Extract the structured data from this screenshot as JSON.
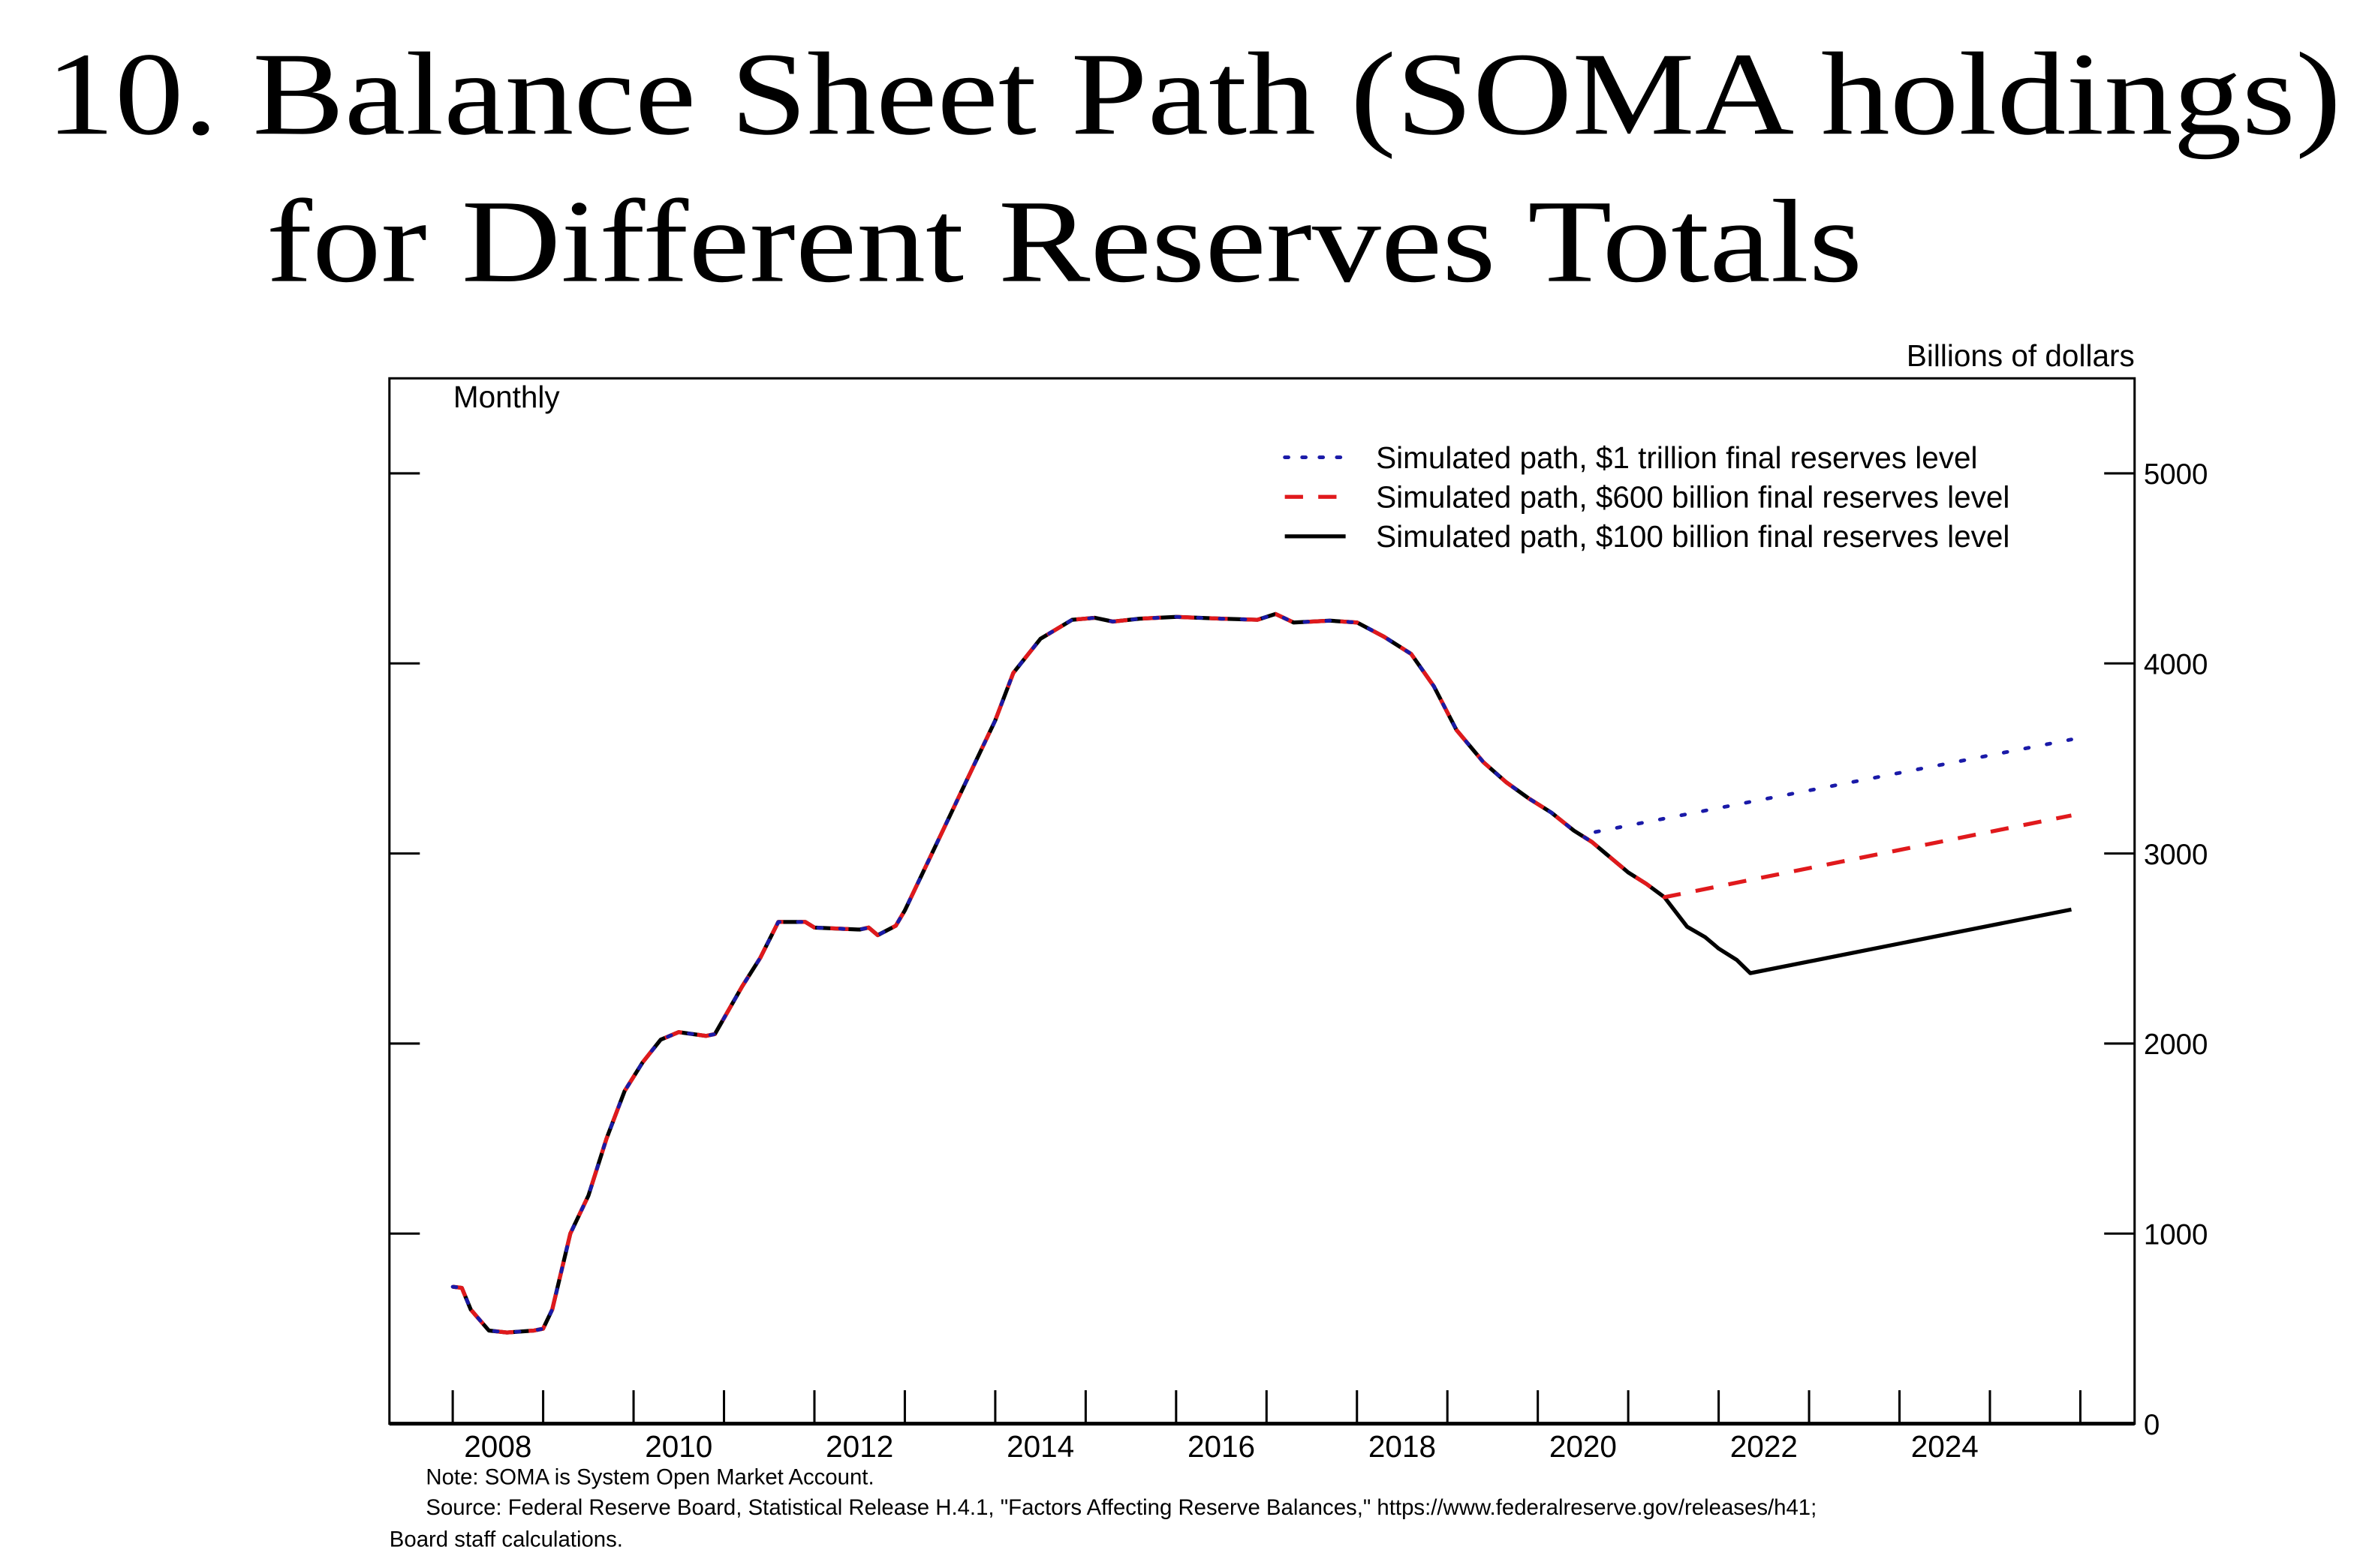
{
  "title_line1": "10. Balance Sheet Path (SOMA holdings)",
  "title_line2": "for Different Reserves Totals",
  "chart_data": {
    "type": "line",
    "frequency_label": "Monthly",
    "ylabel": "Billions of dollars",
    "xlim": [
      2007.3,
      2026.6
    ],
    "ylim": [
      0,
      5500
    ],
    "y_ticks": [
      0,
      1000,
      2000,
      3000,
      4000,
      5000
    ],
    "x_tick_years": [
      2008,
      2009,
      2010,
      2011,
      2012,
      2013,
      2014,
      2015,
      2016,
      2017,
      2018,
      2019,
      2020,
      2021,
      2022,
      2023,
      2024,
      2025,
      2026
    ],
    "x_tick_labels": [
      "2008",
      "2010",
      "2012",
      "2014",
      "2016",
      "2018",
      "2020",
      "2022",
      "2024"
    ],
    "y_axis_side": "right",
    "grid": false,
    "legend_placement": "top-right",
    "history": [
      [
        2008.0,
        720
      ],
      [
        2008.1,
        715
      ],
      [
        2008.2,
        600
      ],
      [
        2008.4,
        490
      ],
      [
        2008.6,
        480
      ],
      [
        2008.9,
        490
      ],
      [
        2009.0,
        500
      ],
      [
        2009.1,
        600
      ],
      [
        2009.3,
        1000
      ],
      [
        2009.5,
        1200
      ],
      [
        2009.7,
        1500
      ],
      [
        2009.9,
        1750
      ],
      [
        2010.1,
        1900
      ],
      [
        2010.3,
        2020
      ],
      [
        2010.5,
        2060
      ],
      [
        2010.8,
        2040
      ],
      [
        2010.9,
        2050
      ],
      [
        2011.2,
        2300
      ],
      [
        2011.4,
        2450
      ],
      [
        2011.6,
        2640
      ],
      [
        2011.9,
        2640
      ],
      [
        2012.0,
        2610
      ],
      [
        2012.5,
        2600
      ],
      [
        2012.6,
        2610
      ],
      [
        2012.7,
        2570
      ],
      [
        2012.9,
        2620
      ],
      [
        2013.0,
        2700
      ],
      [
        2013.3,
        3000
      ],
      [
        2013.6,
        3300
      ],
      [
        2014.0,
        3700
      ],
      [
        2014.2,
        3950
      ],
      [
        2014.5,
        4130
      ],
      [
        2014.85,
        4230
      ],
      [
        2015.1,
        4240
      ],
      [
        2015.3,
        4220
      ],
      [
        2015.6,
        4235
      ],
      [
        2016.0,
        4245
      ],
      [
        2016.5,
        4235
      ],
      [
        2016.9,
        4230
      ],
      [
        2017.1,
        4260
      ],
      [
        2017.3,
        4215
      ],
      [
        2017.7,
        4225
      ],
      [
        2018.0,
        4215
      ],
      [
        2018.3,
        4140
      ],
      [
        2018.6,
        4050
      ],
      [
        2018.85,
        3880
      ],
      [
        2019.1,
        3650
      ],
      [
        2019.4,
        3480
      ],
      [
        2019.65,
        3375
      ],
      [
        2019.9,
        3290
      ],
      [
        2020.15,
        3215
      ],
      [
        2020.4,
        3120
      ],
      [
        2020.6,
        3060
      ]
    ],
    "series": [
      {
        "name": "Simulated path, $100 billion final reserves level",
        "color": "#000000",
        "style": "solid",
        "projection": [
          [
            2020.6,
            3060
          ],
          [
            2020.75,
            3000
          ],
          [
            2021.0,
            2900
          ],
          [
            2021.2,
            2840
          ],
          [
            2021.4,
            2770
          ],
          [
            2021.65,
            2615
          ],
          [
            2021.85,
            2560
          ],
          [
            2022.0,
            2500
          ],
          [
            2022.2,
            2440
          ],
          [
            2022.35,
            2370
          ],
          [
            2025.9,
            2705
          ]
        ]
      },
      {
        "name": "Simulated path, $600 billion final reserves level",
        "color": "#e0191c",
        "style": "dashed",
        "projection": [
          [
            2020.6,
            3060
          ],
          [
            2020.75,
            3000
          ],
          [
            2021.0,
            2900
          ],
          [
            2021.2,
            2840
          ],
          [
            2021.4,
            2770
          ],
          [
            2025.9,
            3200
          ]
        ]
      },
      {
        "name": "Simulated path, $1 trillion final reserves level",
        "color": "#1a1aa8",
        "style": "dotted",
        "projection": [
          [
            2020.6,
            3110
          ],
          [
            2025.9,
            3600
          ]
        ]
      }
    ],
    "legend_order": [
      2,
      1,
      0
    ]
  },
  "notes": {
    "note": "Note:  SOMA is System Open Market Account.",
    "source_line1": "Source:  Federal Reserve Board, Statistical Release H.4.1, \"Factors Affecting Reserve Balances,\" https://www.federalreserve.gov/releases/h41;",
    "source_line2": "Board staff calculations."
  }
}
